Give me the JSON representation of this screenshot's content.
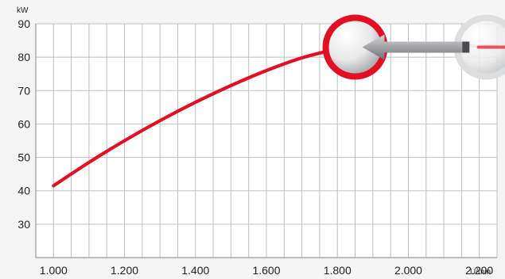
{
  "chart_data": {
    "type": "line",
    "y_unit": "kW",
    "x_unit": "U/min",
    "x_ticks": [
      "1.000",
      "1.200",
      "1.400",
      "1.600",
      "1.800",
      "2.000",
      "2.200"
    ],
    "y_ticks": [
      "30",
      "40",
      "50",
      "60",
      "70",
      "80",
      "90"
    ],
    "xlim": [
      950,
      2250
    ],
    "ylim": [
      20,
      90
    ],
    "grid": true,
    "x_grid_step": 50,
    "series": [
      {
        "style": "solid",
        "color": "#e30f23",
        "x": [
          1000,
          1100,
          1200,
          1300,
          1400,
          1500,
          1600,
          1700,
          1800
        ],
        "y": [
          41.5,
          48.5,
          55,
          61,
          66.5,
          71.5,
          76,
          79.8,
          82.5
        ]
      },
      {
        "style": "faded",
        "color": "#f0a3ac",
        "x": [
          1800,
          1900,
          2000,
          2100,
          2200,
          2250
        ],
        "y": [
          82.5,
          83.3,
          83.4,
          83.4,
          83.4,
          83.4
        ]
      }
    ],
    "highlights": [
      {
        "x": 1850,
        "y": 83,
        "style": "red-ring"
      },
      {
        "x": 2220,
        "y": 83,
        "style": "gray-ring"
      }
    ],
    "arrow": {
      "from_x": 2170,
      "to_x": 1870,
      "y": 83,
      "color": "#999999"
    }
  }
}
